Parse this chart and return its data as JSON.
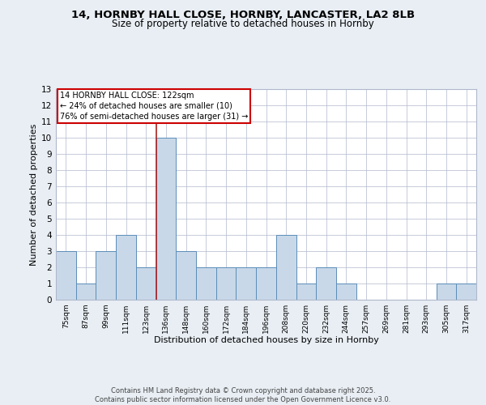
{
  "title_line1": "14, HORNBY HALL CLOSE, HORNBY, LANCASTER, LA2 8LB",
  "title_line2": "Size of property relative to detached houses in Hornby",
  "xlabel": "Distribution of detached houses by size in Hornby",
  "ylabel": "Number of detached properties",
  "categories": [
    "75sqm",
    "87sqm",
    "99sqm",
    "111sqm",
    "123sqm",
    "136sqm",
    "148sqm",
    "160sqm",
    "172sqm",
    "184sqm",
    "196sqm",
    "208sqm",
    "220sqm",
    "232sqm",
    "244sqm",
    "257sqm",
    "269sqm",
    "281sqm",
    "293sqm",
    "305sqm",
    "317sqm"
  ],
  "values": [
    3,
    1,
    3,
    4,
    2,
    10,
    3,
    2,
    2,
    2,
    2,
    4,
    1,
    2,
    1,
    0,
    0,
    0,
    0,
    1,
    1
  ],
  "bar_color": "#c8d8e8",
  "bar_edge_color": "#5b8db8",
  "vline_color": "#aa2222",
  "vline_x_index": 4,
  "ylim": [
    0,
    13
  ],
  "yticks": [
    0,
    1,
    2,
    3,
    4,
    5,
    6,
    7,
    8,
    9,
    10,
    11,
    12,
    13
  ],
  "annotation_title": "14 HORNBY HALL CLOSE: 122sqm",
  "annotation_line2": "← 24% of detached houses are smaller (10)",
  "annotation_line3": "76% of semi-detached houses are larger (31) →",
  "annotation_box_color": "#cc0000",
  "footer_line1": "Contains HM Land Registry data © Crown copyright and database right 2025.",
  "footer_line2": "Contains public sector information licensed under the Open Government Licence v3.0.",
  "bg_color": "#e8eef4",
  "grid_color": "#b0b8cc",
  "plot_bg_color": "#ffffff"
}
